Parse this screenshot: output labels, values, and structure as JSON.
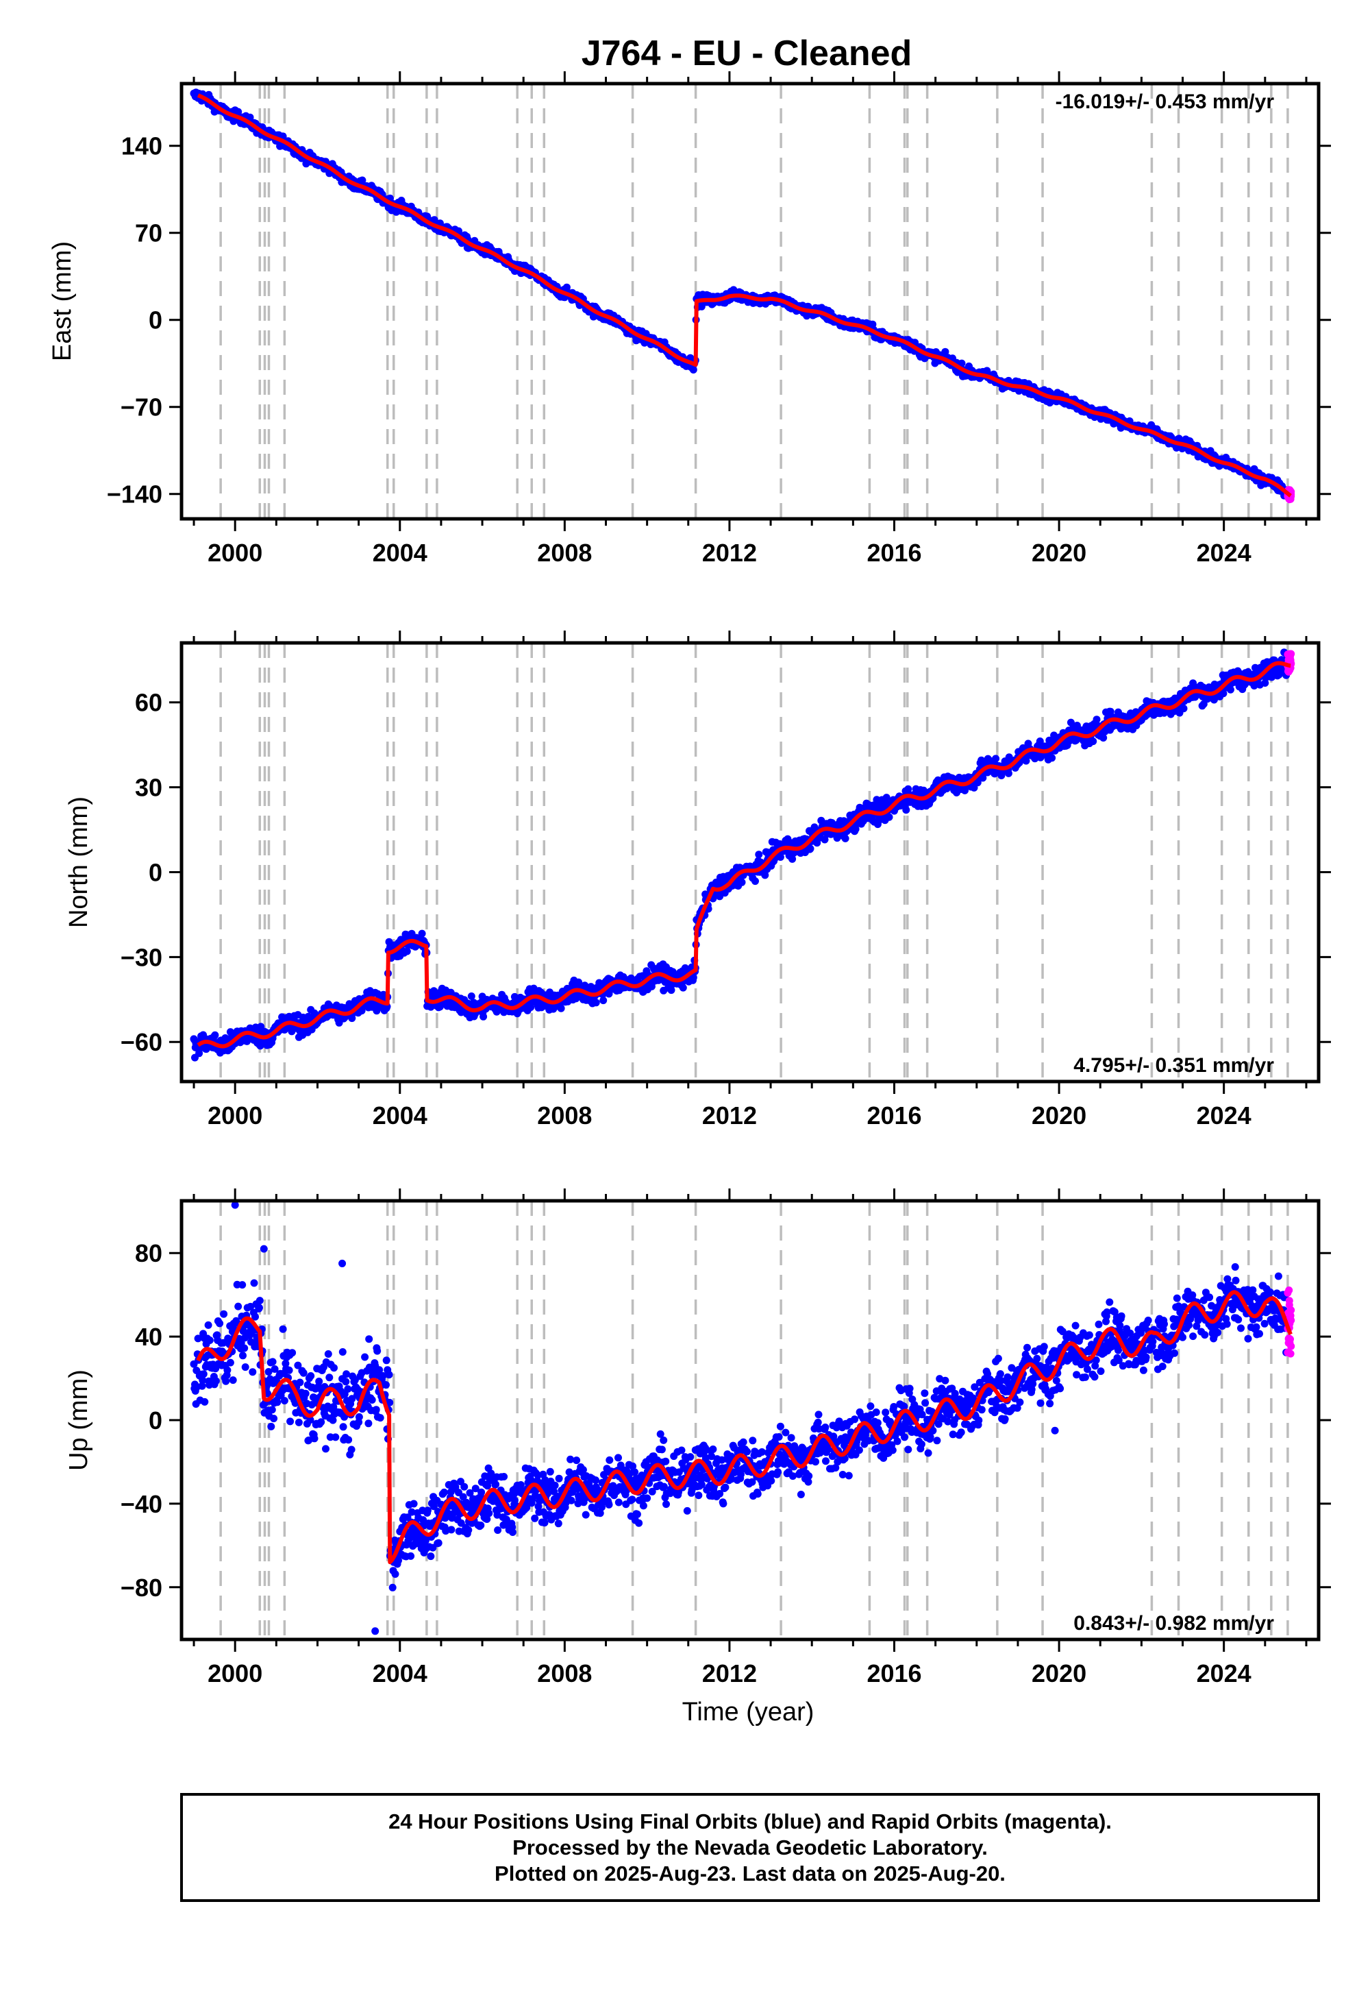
{
  "title": "J764  - EU - Cleaned",
  "xlabel": "Time (year)",
  "footer": [
    "24 Hour Positions Using Final Orbits (blue) and Rapid Orbits (magenta).",
    "Processed by the Nevada Geodetic Laboratory.",
    "Plotted on 2025-Aug-23. Last data on 2025-Aug-20."
  ],
  "colors": {
    "final_orbits": "#0000ff",
    "rapid_orbits": "#ff00ff",
    "model": "#ff0000",
    "event_lines": "#bdbdbd"
  },
  "chart_data": [
    {
      "type": "scatter",
      "ylabel": "East (mm)",
      "rate": "-16.019+/- 0.453 mm/yr",
      "rate_position": "top-right",
      "xlim": [
        1998.7,
        2026.3
      ],
      "ylim": [
        -160,
        190
      ],
      "xticks": [
        2000,
        2004,
        2008,
        2012,
        2016,
        2020,
        2024
      ],
      "yticks": [
        -140,
        -70,
        0,
        70,
        140
      ],
      "ytick_labels": [
        "−140",
        "−70",
        "0",
        "70",
        "140"
      ],
      "model_knots": [
        [
          1999.1,
          180
        ],
        [
          2001,
          146
        ],
        [
          2003,
          108
        ],
        [
          2005,
          74
        ],
        [
          2007,
          40
        ],
        [
          2009,
          3
        ],
        [
          2011.18,
          -37
        ],
        [
          2011.19,
          14
        ],
        [
          2012,
          19
        ],
        [
          2013,
          17
        ],
        [
          2014.2,
          5
        ],
        [
          2016,
          -15
        ],
        [
          2018,
          -44
        ],
        [
          2020,
          -63
        ],
        [
          2022,
          -88
        ],
        [
          2023,
          -100
        ],
        [
          2024,
          -115
        ],
        [
          2025,
          -128
        ],
        [
          2025.63,
          -141
        ]
      ],
      "noise_mm": 3,
      "series": [
        {
          "name": "Final Orbits (blue)",
          "x_range": [
            1999.0,
            2025.55
          ]
        },
        {
          "name": "Rapid Orbits (magenta)",
          "x_range": [
            2025.55,
            2025.63
          ]
        }
      ]
    },
    {
      "type": "scatter",
      "ylabel": "North (mm)",
      "rate": "4.795+/- 0.351 mm/yr",
      "rate_position": "bottom-right",
      "xlim": [
        1998.7,
        2026.3
      ],
      "ylim": [
        -74,
        81
      ],
      "xticks": [
        2000,
        2004,
        2008,
        2012,
        2016,
        2020,
        2024
      ],
      "yticks": [
        -60,
        -30,
        0,
        30,
        60
      ],
      "ytick_labels": [
        "−60",
        "−30",
        "0",
        "30",
        "60"
      ],
      "model_knots": [
        [
          1999.1,
          -62
        ],
        [
          2001,
          -56
        ],
        [
          2003.3,
          -46
        ],
        [
          2003.7,
          -45
        ],
        [
          2003.72,
          -27
        ],
        [
          2004.65,
          -25
        ],
        [
          2004.66,
          -44
        ],
        [
          2006,
          -48
        ],
        [
          2008,
          -44
        ],
        [
          2010,
          -38
        ],
        [
          2011.18,
          -36
        ],
        [
          2011.19,
          -22
        ],
        [
          2011.6,
          -5
        ],
        [
          2012,
          -4
        ],
        [
          2013,
          5
        ],
        [
          2013.3,
          7
        ],
        [
          2014,
          12
        ],
        [
          2016,
          24
        ],
        [
          2018,
          34
        ],
        [
          2020,
          46
        ],
        [
          2022,
          56
        ],
        [
          2024,
          66
        ],
        [
          2025.63,
          74
        ]
      ],
      "noise_mm": 2.5,
      "series": [
        {
          "name": "Final Orbits (blue)",
          "x_range": [
            1999.0,
            2025.55
          ]
        },
        {
          "name": "Rapid Orbits (magenta)",
          "x_range": [
            2025.55,
            2025.63
          ]
        }
      ]
    },
    {
      "type": "scatter",
      "ylabel": "Up (mm)",
      "rate": "0.843+/- 0.982 mm/yr",
      "rate_position": "bottom-right",
      "xlim": [
        1998.7,
        2026.3
      ],
      "ylim": [
        -105,
        105
      ],
      "xticks": [
        2000,
        2004,
        2008,
        2012,
        2016,
        2020,
        2024
      ],
      "yticks": [
        -80,
        -40,
        0,
        40,
        80
      ],
      "ytick_labels": [
        "−80",
        "−40",
        "0",
        "40",
        "80"
      ],
      "model_knots": [
        [
          1999.1,
          25
        ],
        [
          2000,
          40
        ],
        [
          2000.6,
          46
        ],
        [
          2000.7,
          16
        ],
        [
          2001.5,
          12
        ],
        [
          2002,
          5
        ],
        [
          2002.5,
          12
        ],
        [
          2003,
          6
        ],
        [
          2003.5,
          18
        ],
        [
          2003.75,
          8
        ],
        [
          2003.76,
          -62
        ],
        [
          2005,
          -45
        ],
        [
          2006,
          -40
        ],
        [
          2008,
          -35
        ],
        [
          2010,
          -28
        ],
        [
          2012,
          -24
        ],
        [
          2014,
          -15
        ],
        [
          2016,
          -3
        ],
        [
          2018,
          8
        ],
        [
          2020,
          28
        ],
        [
          2021,
          38
        ],
        [
          2022.3,
          36
        ],
        [
          2023,
          48
        ],
        [
          2024,
          55
        ],
        [
          2025,
          56
        ],
        [
          2025.63,
          45
        ]
      ],
      "noise_mm": 9,
      "outliers": [
        [
          2000.0,
          103
        ],
        [
          2000.7,
          82
        ],
        [
          2002.6,
          75
        ],
        [
          2003.4,
          -101
        ],
        [
          2019.9,
          -5
        ]
      ],
      "series": [
        {
          "name": "Final Orbits (blue)",
          "x_range": [
            1999.0,
            2025.55
          ]
        },
        {
          "name": "Rapid Orbits (magenta)",
          "x_range": [
            2025.55,
            2025.63
          ]
        }
      ]
    }
  ],
  "event_lines": [
    1999.65,
    2000.6,
    2000.72,
    2000.82,
    2001.2,
    2003.7,
    2003.85,
    2004.65,
    2004.9,
    2006.85,
    2007.2,
    2007.5,
    2009.65,
    2011.18,
    2013.25,
    2015.4,
    2016.25,
    2016.32,
    2016.8,
    2018.5,
    2019.6,
    2022.25,
    2022.9,
    2023.95,
    2024.6,
    2025.15,
    2025.55
  ]
}
